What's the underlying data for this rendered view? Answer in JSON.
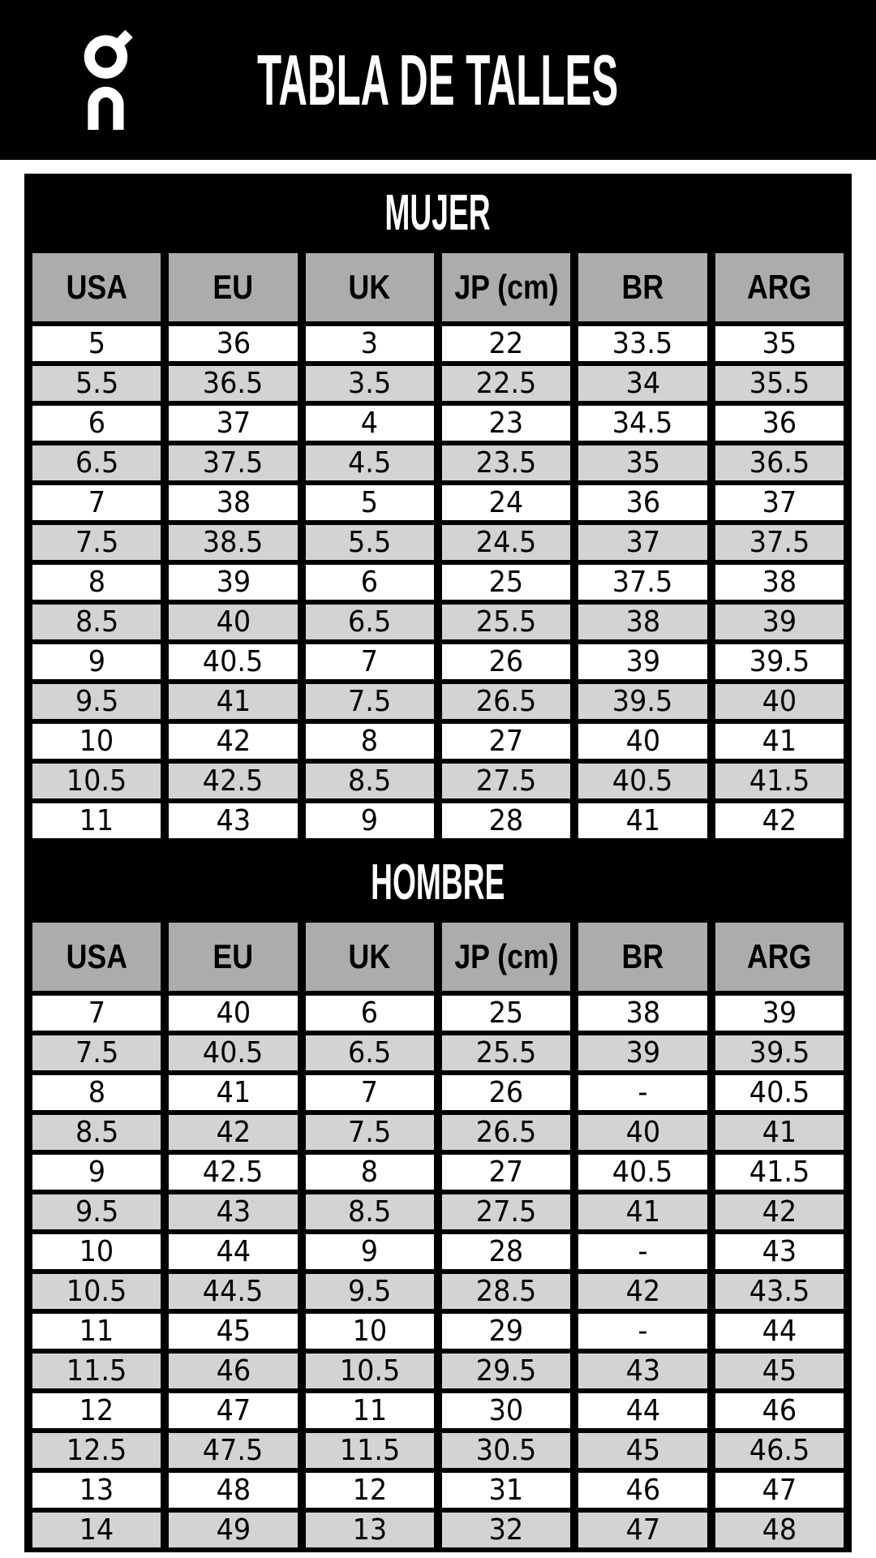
{
  "header": {
    "title": "TABLA DE TALLES",
    "logo": "on-logo"
  },
  "colors": {
    "banner_black": "#000000",
    "band_text_white": "#FFFFFF",
    "column_header_gray": "#ACACAC",
    "alt_row_gray": "#D3D3D3",
    "row_white": "#FFFFFF",
    "border_black": "#000000"
  },
  "chart_data": [
    {
      "type": "table",
      "title": "MUJER",
      "columns": [
        "USA",
        "EU",
        "UK",
        "JP (cm)",
        "BR",
        "ARG"
      ],
      "rows": [
        [
          "5",
          "36",
          "3",
          "22",
          "33.5",
          "35"
        ],
        [
          "5.5",
          "36.5",
          "3.5",
          "22.5",
          "34",
          "35.5"
        ],
        [
          "6",
          "37",
          "4",
          "23",
          "34.5",
          "36"
        ],
        [
          "6.5",
          "37.5",
          "4.5",
          "23.5",
          "35",
          "36.5"
        ],
        [
          "7",
          "38",
          "5",
          "24",
          "36",
          "37"
        ],
        [
          "7.5",
          "38.5",
          "5.5",
          "24.5",
          "37",
          "37.5"
        ],
        [
          "8",
          "39",
          "6",
          "25",
          "37.5",
          "38"
        ],
        [
          "8.5",
          "40",
          "6.5",
          "25.5",
          "38",
          "39"
        ],
        [
          "9",
          "40.5",
          "7",
          "26",
          "39",
          "39.5"
        ],
        [
          "9.5",
          "41",
          "7.5",
          "26.5",
          "39.5",
          "40"
        ],
        [
          "10",
          "42",
          "8",
          "27",
          "40",
          "41"
        ],
        [
          "10.5",
          "42.5",
          "8.5",
          "27.5",
          "40.5",
          "41.5"
        ],
        [
          "11",
          "43",
          "9",
          "28",
          "41",
          "42"
        ]
      ]
    },
    {
      "type": "table",
      "title": "HOMBRE",
      "columns": [
        "USA",
        "EU",
        "UK",
        "JP (cm)",
        "BR",
        "ARG"
      ],
      "rows": [
        [
          "7",
          "40",
          "6",
          "25",
          "38",
          "39"
        ],
        [
          "7.5",
          "40.5",
          "6.5",
          "25.5",
          "39",
          "39.5"
        ],
        [
          "8",
          "41",
          "7",
          "26",
          "-",
          "40.5"
        ],
        [
          "8.5",
          "42",
          "7.5",
          "26.5",
          "40",
          "41"
        ],
        [
          "9",
          "42.5",
          "8",
          "27",
          "40.5",
          "41.5"
        ],
        [
          "9.5",
          "43",
          "8.5",
          "27.5",
          "41",
          "42"
        ],
        [
          "10",
          "44",
          "9",
          "28",
          "-",
          "43"
        ],
        [
          "10.5",
          "44.5",
          "9.5",
          "28.5",
          "42",
          "43.5"
        ],
        [
          "11",
          "45",
          "10",
          "29",
          "-",
          "44"
        ],
        [
          "11.5",
          "46",
          "10.5",
          "29.5",
          "43",
          "45"
        ],
        [
          "12",
          "47",
          "11",
          "30",
          "44",
          "46"
        ],
        [
          "12.5",
          "47.5",
          "11.5",
          "30.5",
          "45",
          "46.5"
        ],
        [
          "13",
          "48",
          "12",
          "31",
          "46",
          "47"
        ],
        [
          "14",
          "49",
          "13",
          "32",
          "47",
          "48"
        ]
      ]
    }
  ]
}
